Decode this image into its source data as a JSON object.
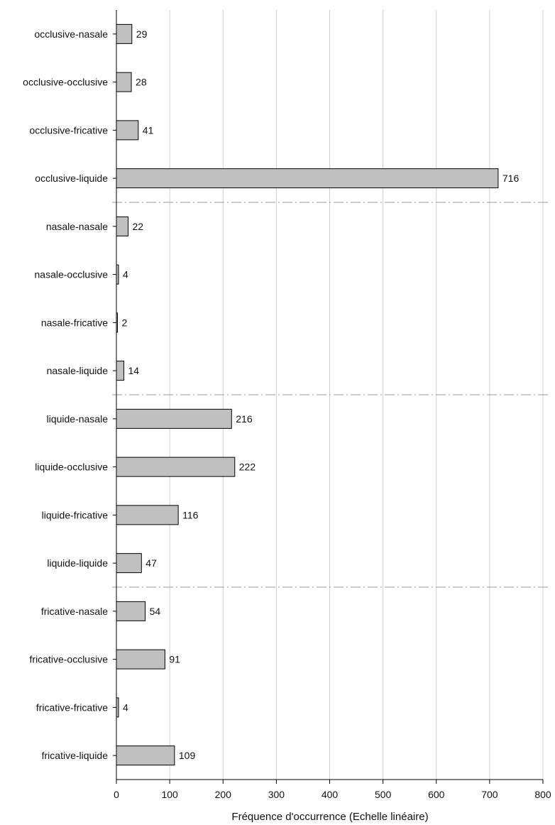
{
  "chart_data": {
    "type": "bar",
    "orientation": "horizontal",
    "title": "",
    "xlabel": "Fréquence d'occurrence (Echelle linéaire)",
    "ylabel": "",
    "xlim": [
      0,
      800
    ],
    "xticks": [
      0,
      100,
      200,
      300,
      400,
      500,
      600,
      700,
      800
    ],
    "grid": "vertical",
    "legend": "none",
    "categories": [
      "occlusive-nasale",
      "occlusive-occlusive",
      "occlusive-fricative",
      "occlusive-liquide",
      "nasale-nasale",
      "nasale-occlusive",
      "nasale-fricative",
      "nasale-liquide",
      "liquide-nasale",
      "liquide-occlusive",
      "liquide-fricative",
      "liquide-liquide",
      "fricative-nasale",
      "fricative-occlusive",
      "fricative-fricative",
      "fricative-liquide"
    ],
    "values": [
      29,
      28,
      41,
      716,
      22,
      4,
      2,
      14,
      216,
      222,
      116,
      47,
      54,
      91,
      4,
      109
    ],
    "group_separators_after_index": [
      3,
      7,
      11
    ],
    "colors": {
      "bar_fill": "#c0c0c0",
      "bar_stroke": "#000000",
      "grid": "#d0d0d0",
      "separator": "#999999"
    }
  }
}
